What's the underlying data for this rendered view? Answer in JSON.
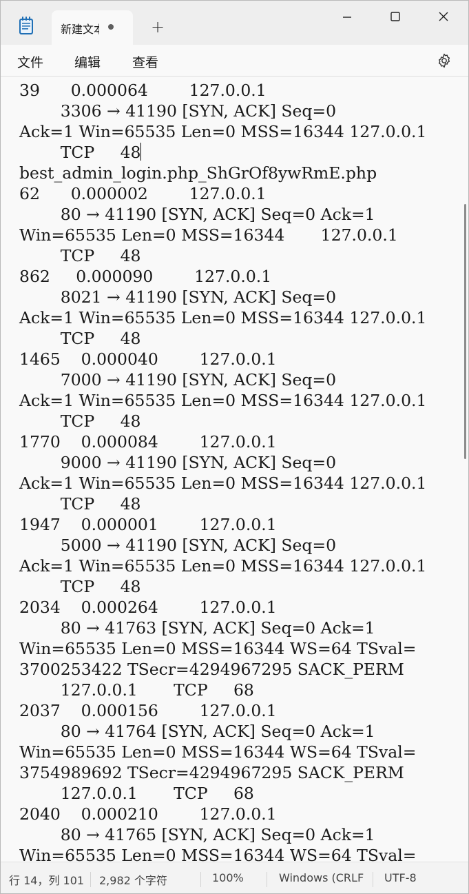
{
  "titlebar": {
    "app_icon": "notepad-icon",
    "tab_title": "新建文本文档",
    "tab_unsaved_indicator": "●",
    "new_tab_label": "+",
    "minimize_icon": "minimize-icon",
    "maximize_icon": "maximize-icon",
    "close_icon": "close-icon"
  },
  "menu": {
    "file": "文件",
    "edit": "编辑",
    "view": "查看",
    "settings_icon": "gear-icon"
  },
  "editor": {
    "lines": [
      "39      0.000064        127.0.0.1",
      "        3306 → 41190 [SYN, ACK] Seq=0",
      "Ack=1 Win=65535 Len=0 MSS=16344 127.0.0.1",
      "        TCP     48",
      "best_admin_login.php_ShGrOf8ywRmE.php",
      "62      0.000002        127.0.0.1",
      "        80 → 41190 [SYN, ACK] Seq=0 Ack=1",
      "Win=65535 Len=0 MSS=16344       127.0.0.1",
      "        TCP     48",
      "862     0.000090        127.0.0.1",
      "        8021 → 41190 [SYN, ACK] Seq=0",
      "Ack=1 Win=65535 Len=0 MSS=16344 127.0.0.1",
      "        TCP     48",
      "1465    0.000040        127.0.0.1",
      "        7000 → 41190 [SYN, ACK] Seq=0",
      "Ack=1 Win=65535 Len=0 MSS=16344 127.0.0.1",
      "        TCP     48",
      "1770    0.000084        127.0.0.1",
      "        9000 → 41190 [SYN, ACK] Seq=0",
      "Ack=1 Win=65535 Len=0 MSS=16344 127.0.0.1",
      "        TCP     48",
      "1947    0.000001        127.0.0.1",
      "        5000 → 41190 [SYN, ACK] Seq=0",
      "Ack=1 Win=65535 Len=0 MSS=16344 127.0.0.1",
      "        TCP     48",
      "2034    0.000264        127.0.0.1",
      "        80 → 41763 [SYN, ACK] Seq=0 Ack=1",
      "Win=65535 Len=0 MSS=16344 WS=64 TSval=",
      "3700253422 TSecr=4294967295 SACK_PERM",
      "        127.0.0.1       TCP     68",
      "2037    0.000156        127.0.0.1",
      "        80 → 41764 [SYN, ACK] Seq=0 Ack=1",
      "Win=65535 Len=0 MSS=16344 WS=64 TSval=",
      "3754989692 TSecr=4294967295 SACK_PERM",
      "        127.0.0.1       TCP     68",
      "2040    0.000210        127.0.0.1",
      "        80 → 41765 [SYN, ACK] Seq=0 Ack=1",
      "Win=65535 Len=0 MSS=16344 WS=64 TSval="
    ]
  },
  "status": {
    "position": "行 14，列 101",
    "char_count": "2,982 个字符",
    "zoom": "100%",
    "line_ending": "Windows (CRLF)",
    "encoding": "UTF-8"
  }
}
